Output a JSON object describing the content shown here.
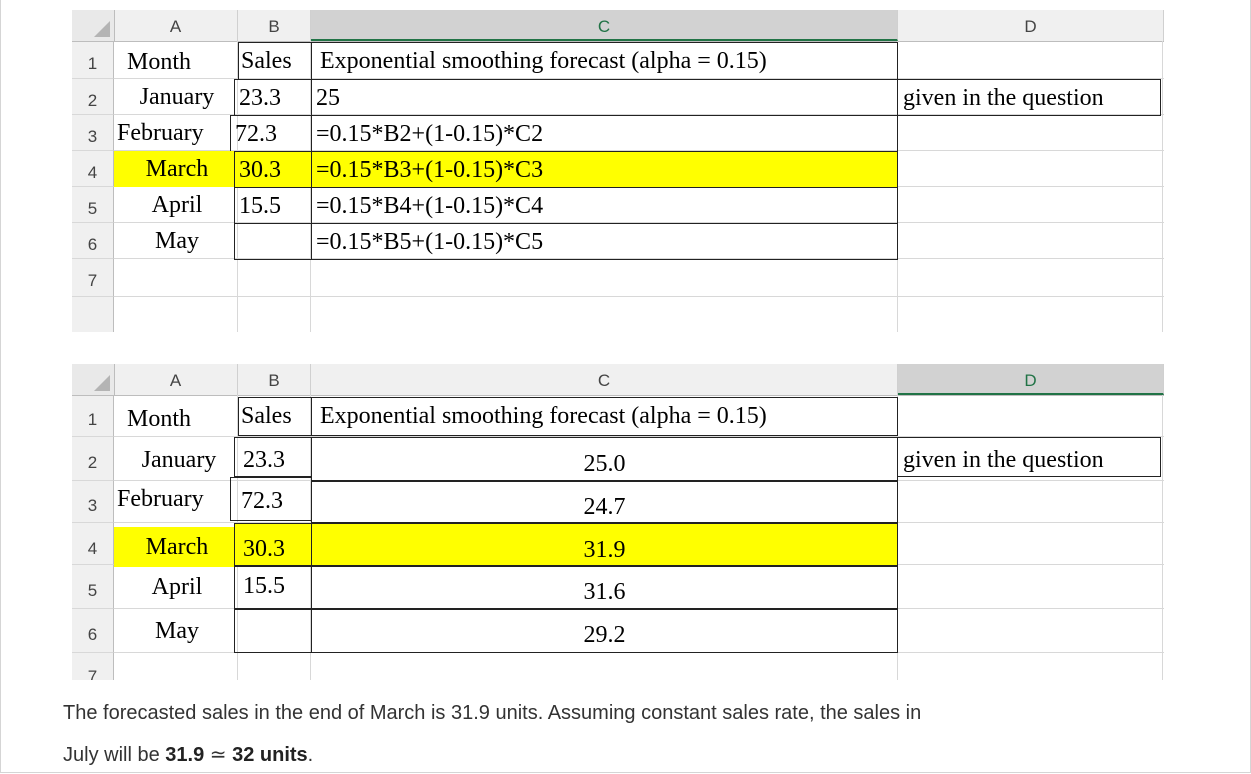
{
  "columns": [
    "A",
    "B",
    "C",
    "D"
  ],
  "rows": [
    "1",
    "2",
    "3",
    "4",
    "5",
    "6",
    "7"
  ],
  "sheet1": {
    "header": {
      "a": "Month",
      "b": "Sales",
      "c": "Exponential smoothing forecast (alpha = 0.15)"
    },
    "data": [
      {
        "a": "January",
        "b": "23.3",
        "c": "25",
        "d": "given in the question"
      },
      {
        "a": "February",
        "b": "72.3",
        "c": "=0.15*B2+(1-0.15)*C2",
        "d": ""
      },
      {
        "a": "March",
        "b": "30.3",
        "c": "=0.15*B3+(1-0.15)*C3",
        "d": ""
      },
      {
        "a": "April",
        "b": "15.5",
        "c": "=0.15*B4+(1-0.15)*C4",
        "d": ""
      },
      {
        "a": "May",
        "b": "",
        "c": "=0.15*B5+(1-0.15)*C5",
        "d": ""
      }
    ],
    "selected_column": "C",
    "highlight_color": "#ffff00"
  },
  "sheet2": {
    "header": {
      "a": "Month",
      "b": "Sales",
      "c": "Exponential smoothing forecast (alpha = 0.15)"
    },
    "data": [
      {
        "a": "January",
        "b": "23.3",
        "c": "25.0",
        "d": "given in the question"
      },
      {
        "a": "February",
        "b": "72.3",
        "c": "24.7",
        "d": ""
      },
      {
        "a": "March",
        "b": "30.3",
        "c": "31.9",
        "d": ""
      },
      {
        "a": "April",
        "b": "15.5",
        "c": "31.6",
        "d": ""
      },
      {
        "a": "May",
        "b": "",
        "c": "29.2",
        "d": ""
      }
    ],
    "selected_column": "D",
    "highlight_color": "#ffff00"
  },
  "text": {
    "line1": "The forecasted sales in the end of March is 31.9 units. Assuming constant sales rate, the sales in",
    "line2_pre": "July will be ",
    "line2_bold1": "31.9",
    "line2_approx": " ≃ ",
    "line2_bold2": "32 units",
    "line2_post": "."
  },
  "colors": {
    "selected_header_text": "#217346",
    "highlight": "#ffff00"
  }
}
